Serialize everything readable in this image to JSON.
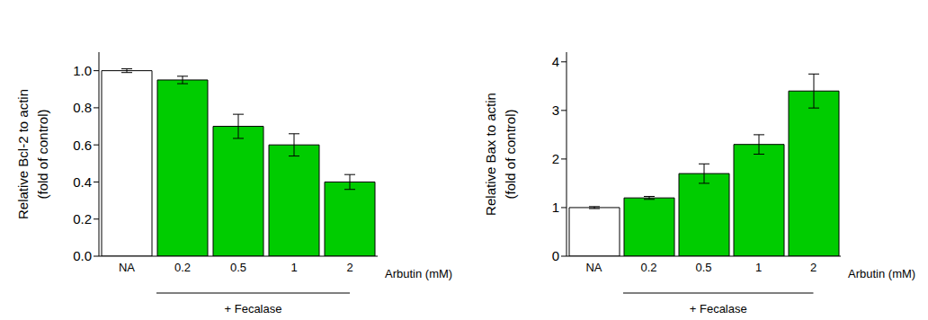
{
  "chart_data": [
    {
      "type": "bar",
      "ylabel": [
        "Relative Bcl-2 to actin",
        "(fold of control)"
      ],
      "xlabel": "Arbutin (mM)",
      "annotation": "+ Fecalase",
      "categories": [
        "NA",
        "0.2",
        "0.5",
        "1",
        "2"
      ],
      "values": [
        1.0,
        0.95,
        0.7,
        0.6,
        0.4
      ],
      "errors": [
        0.01,
        0.02,
        0.065,
        0.06,
        0.04
      ],
      "colors": [
        "#ffffff",
        "#00cc00",
        "#00cc00",
        "#00cc00",
        "#00cc00"
      ],
      "ylim": [
        0,
        1.1
      ],
      "yticks": [
        {
          "value": 0,
          "label": "0.0"
        },
        0.2,
        0.4,
        0.6,
        0.8,
        {
          "value": 1,
          "label": "1.0"
        }
      ]
    },
    {
      "type": "bar",
      "ylabel": [
        "Relative Bax to actin",
        "(fold of control)"
      ],
      "xlabel": "Arbutin (mM)",
      "annotation": "+ Fecalase",
      "categories": [
        "NA",
        "0.2",
        "0.5",
        "1",
        "2"
      ],
      "values": [
        1.0,
        1.2,
        1.7,
        2.3,
        3.4
      ],
      "errors": [
        0.02,
        0.03,
        0.2,
        0.2,
        0.35
      ],
      "colors": [
        "#ffffff",
        "#00cc00",
        "#00cc00",
        "#00cc00",
        "#00cc00"
      ],
      "ylim": [
        0,
        4.2
      ],
      "yticks": [
        0,
        1,
        2,
        3,
        4
      ]
    }
  ]
}
